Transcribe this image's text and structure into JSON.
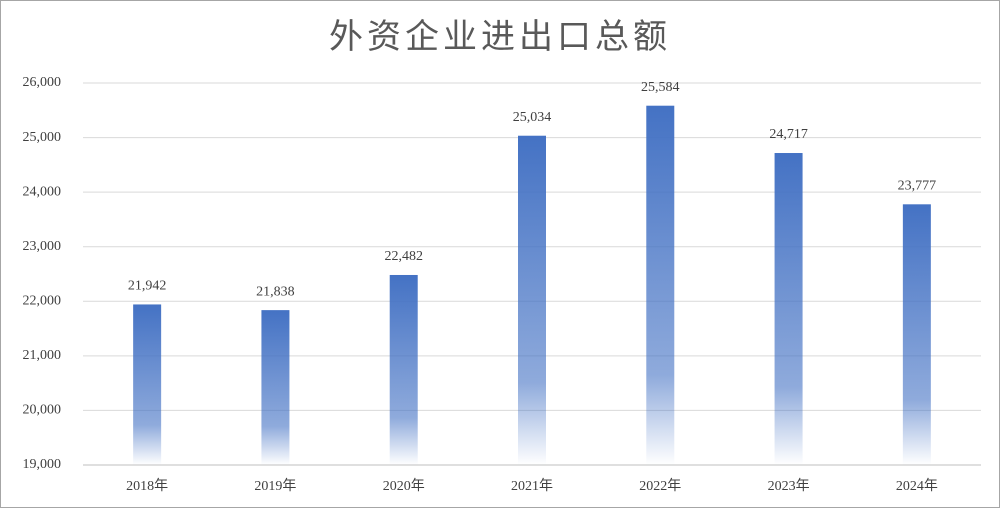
{
  "chart_data": {
    "type": "bar",
    "title": "外资企业进出口总额",
    "categories": [
      "2018年",
      "2019年",
      "2020年",
      "2021年",
      "2022年",
      "2023年",
      "2024年"
    ],
    "values": [
      21942,
      21838,
      22482,
      25034,
      25584,
      24717,
      23777
    ],
    "value_labels": [
      "21,942",
      "21,838",
      "22,482",
      "25,034",
      "25,584",
      "24,717",
      "23,777"
    ],
    "color": "#4472c4",
    "ylim": [
      19000,
      26000
    ],
    "yticks": [
      {
        "value": 19000,
        "label": "19,000"
      },
      {
        "value": 20000,
        "label": "20,000"
      },
      {
        "value": 21000,
        "label": "21,000"
      },
      {
        "value": 22000,
        "label": "22,000"
      },
      {
        "value": 23000,
        "label": "23,000"
      },
      {
        "value": 24000,
        "label": "24,000"
      },
      {
        "value": 25000,
        "label": "25,000"
      },
      {
        "value": 26000,
        "label": "26,000"
      }
    ],
    "grid": true
  }
}
